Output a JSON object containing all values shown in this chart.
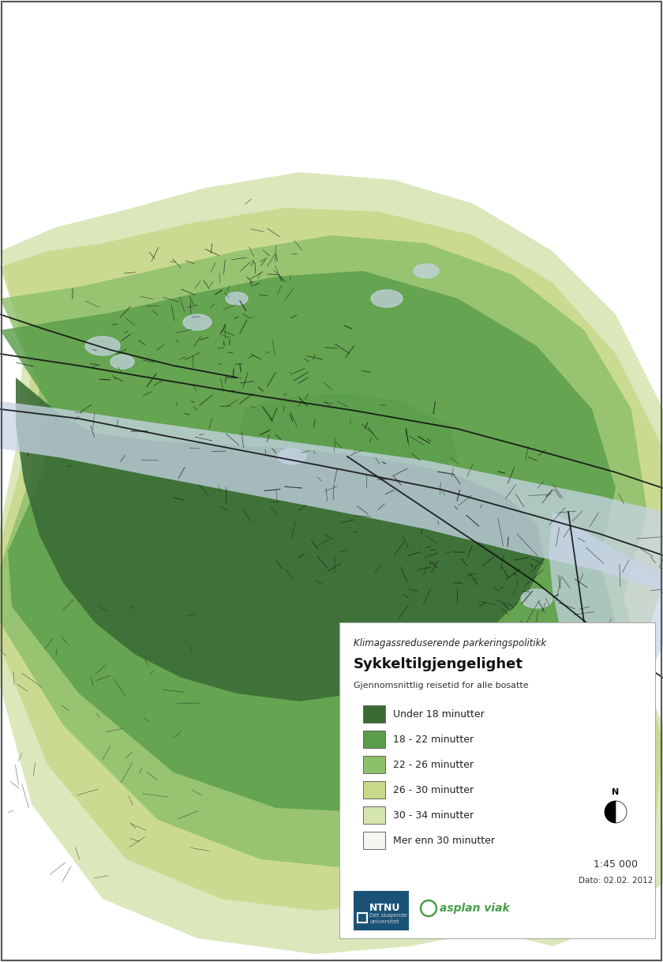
{
  "title_line1": "Klimagassreduserende parkeringspolitikk",
  "title_line2": "Sykkeltilgjengelighet",
  "subtitle": "Gjennomsnittlig reisetid for alle bosatte",
  "legend_items": [
    {
      "label": "Under 18 minutter",
      "color": "#3a6b35"
    },
    {
      "label": "18 - 22 minutter",
      "color": "#5a9e4a"
    },
    {
      "label": "22 - 26 minutter",
      "color": "#8dc06a"
    },
    {
      "label": "26 - 30 minutter",
      "color": "#c8d98a"
    },
    {
      "label": "30 - 34 minutter",
      "color": "#d4e5b0"
    },
    {
      "label": "Mer enn 30 minutter",
      "color": "#f5f5f0"
    }
  ],
  "scale_text": "1:45 000",
  "date_text": "Dato: 02.02. 2012",
  "water_color": "#c8d4e8",
  "map_bg": "#ffffff",
  "border_color": "#666666",
  "figsize": [
    8.4,
    12.18
  ],
  "dpi": 100
}
